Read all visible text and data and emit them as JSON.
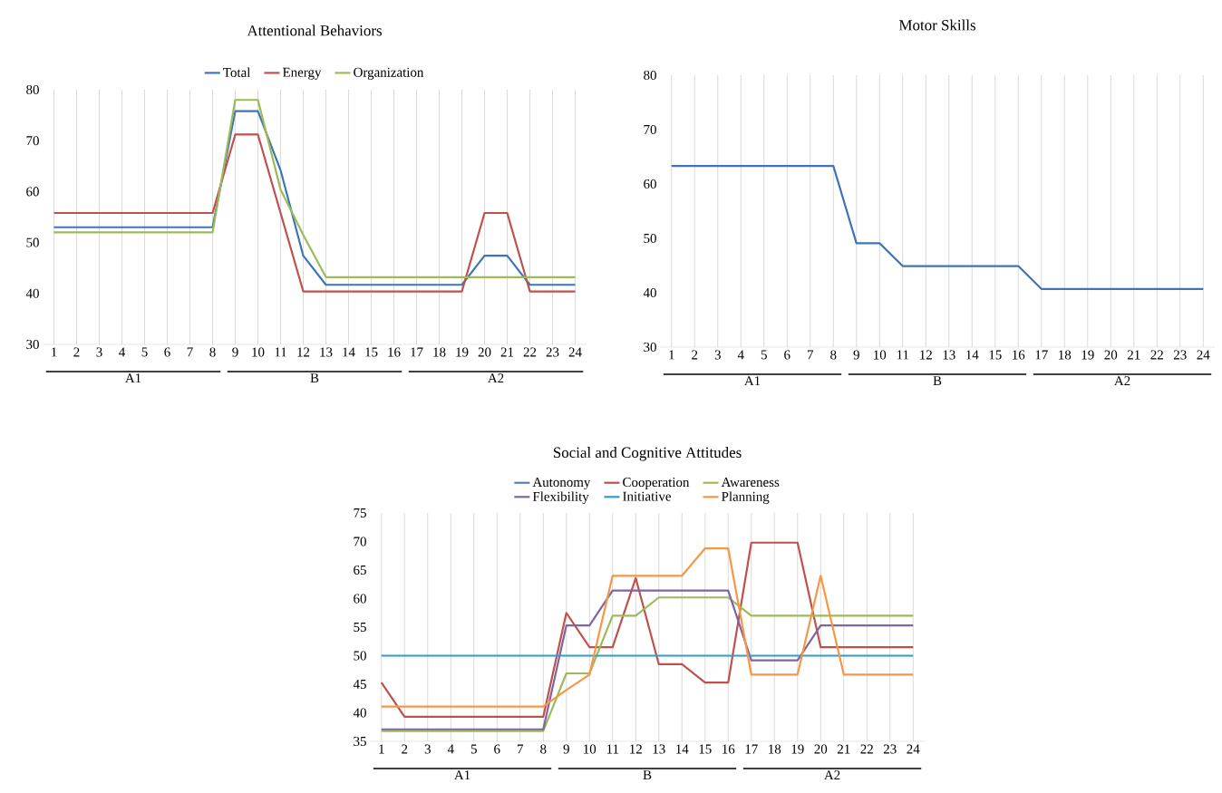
{
  "chart_data": [
    {
      "type": "line",
      "title": "Attentional Behaviors",
      "categories": [
        "1",
        "2",
        "3",
        "4",
        "5",
        "6",
        "7",
        "8",
        "9",
        "10",
        "11",
        "12",
        "13",
        "14",
        "15",
        "16",
        "17",
        "18",
        "19",
        "20",
        "21",
        "22",
        "23",
        "24"
      ],
      "series": [
        {
          "name": "Total",
          "color": "#3e74b8",
          "values": [
            53,
            53,
            53,
            53,
            53,
            53,
            53,
            53,
            75.8,
            75.8,
            64.2,
            47.4,
            41.7,
            41.7,
            41.7,
            41.7,
            41.7,
            41.7,
            41.7,
            47.4,
            47.4,
            41.7,
            41.7,
            41.7
          ]
        },
        {
          "name": "Energy",
          "color": "#c0504d",
          "values": [
            55.8,
            55.8,
            55.8,
            55.8,
            55.8,
            55.8,
            55.8,
            55.8,
            71.2,
            71.2,
            55.8,
            40.4,
            40.4,
            40.4,
            40.4,
            40.4,
            40.4,
            40.4,
            40.4,
            55.8,
            55.8,
            40.4,
            40.4,
            40.4
          ]
        },
        {
          "name": "Organization",
          "color": "#9bbb59",
          "values": [
            52,
            52,
            52,
            52,
            52,
            52,
            52,
            52,
            78,
            78,
            60.4,
            51.5,
            43.2,
            43.2,
            43.2,
            43.2,
            43.2,
            43.2,
            43.2,
            43.2,
            43.2,
            43.2,
            43.2,
            43.2
          ]
        }
      ],
      "ylim": [
        30,
        80
      ],
      "yticks": [
        30,
        40,
        50,
        60,
        70,
        80
      ],
      "grid": "x",
      "legend": "top",
      "annotations": [
        "A1",
        "B",
        "A2"
      ]
    },
    {
      "type": "line",
      "title": "Motor Skills",
      "categories": [
        "1",
        "2",
        "3",
        "4",
        "5",
        "6",
        "7",
        "8",
        "9",
        "10",
        "11",
        "12",
        "13",
        "14",
        "15",
        "16",
        "17",
        "18",
        "19",
        "20",
        "21",
        "22",
        "23",
        "24"
      ],
      "series": [
        {
          "color": "#3e74b8",
          "values": [
            63.3,
            63.3,
            63.3,
            63.3,
            63.3,
            63.3,
            63.3,
            63.3,
            49.1,
            49.1,
            44.9,
            44.9,
            44.9,
            44.9,
            44.9,
            44.9,
            40.7,
            40.7,
            40.7,
            40.7,
            40.7,
            40.7,
            40.7,
            40.7
          ]
        }
      ],
      "ylim": [
        30,
        80
      ],
      "yticks": [
        30,
        40,
        50,
        60,
        70,
        80
      ],
      "grid": "x",
      "annotations": [
        "A1",
        "B",
        "A2"
      ]
    },
    {
      "type": "line",
      "title": "Social and Cognitive Attitudes",
      "categories": [
        "1",
        "2",
        "3",
        "4",
        "5",
        "6",
        "7",
        "8",
        "9",
        "10",
        "11",
        "12",
        "13",
        "14",
        "15",
        "16",
        "17",
        "18",
        "19",
        "20",
        "21",
        "22",
        "23",
        "24"
      ],
      "series": [
        {
          "name": "Autonomy",
          "color": "#4f81bd",
          "values": [
            null,
            null,
            null,
            null,
            null,
            null,
            null,
            null,
            null,
            null,
            null,
            null,
            null,
            null,
            null,
            null,
            null,
            null,
            null,
            null,
            null,
            null,
            null,
            null
          ]
        },
        {
          "name": "Cooperation",
          "color": "#c0504d",
          "values": [
            45.3,
            39.3,
            39.3,
            39.3,
            39.3,
            39.3,
            39.3,
            39.3,
            57.5,
            51.5,
            51.5,
            63.6,
            48.5,
            48.5,
            45.3,
            45.3,
            69.8,
            69.8,
            69.8,
            51.5,
            51.5,
            51.5,
            51.5,
            51.5
          ]
        },
        {
          "name": "Awareness",
          "color": "#9bbb59",
          "values": [
            36.8,
            36.8,
            36.8,
            36.8,
            36.8,
            36.8,
            36.8,
            36.8,
            46.9,
            46.9,
            57,
            57,
            60.2,
            60.2,
            60.2,
            60.2,
            57,
            57,
            57,
            57,
            57,
            57,
            57,
            57
          ]
        },
        {
          "name": "Flexibility",
          "color": "#8064a2",
          "values": [
            37.1,
            37.1,
            37.1,
            37.1,
            37.1,
            37.1,
            37.1,
            37.1,
            55.3,
            55.3,
            61.4,
            61.4,
            61.4,
            61.4,
            61.4,
            61.4,
            49.2,
            49.2,
            49.2,
            55.3,
            55.3,
            55.3,
            55.3,
            55.3
          ]
        },
        {
          "name": "Initiative",
          "color": "#2e9ec6",
          "values": [
            50,
            50,
            50,
            50,
            50,
            50,
            50,
            50,
            50,
            50,
            50,
            50,
            50,
            50,
            50,
            50,
            50,
            50,
            50,
            50,
            50,
            50,
            50,
            50
          ]
        },
        {
          "name": "Planning",
          "color": "#f79646",
          "values": [
            41.1,
            41.1,
            41.1,
            41.1,
            41.1,
            41.1,
            41.1,
            41.1,
            44,
            46.7,
            64,
            64,
            64,
            64,
            68.8,
            68.8,
            46.7,
            46.7,
            46.7,
            64,
            46.7,
            46.7,
            46.7,
            46.7
          ]
        }
      ],
      "ylim": [
        35,
        75
      ],
      "yticks": [
        35,
        40,
        45,
        50,
        55,
        60,
        65,
        70,
        75
      ],
      "grid": "x",
      "legend": "top",
      "annotations": [
        "A1",
        "B",
        "A2"
      ]
    }
  ]
}
